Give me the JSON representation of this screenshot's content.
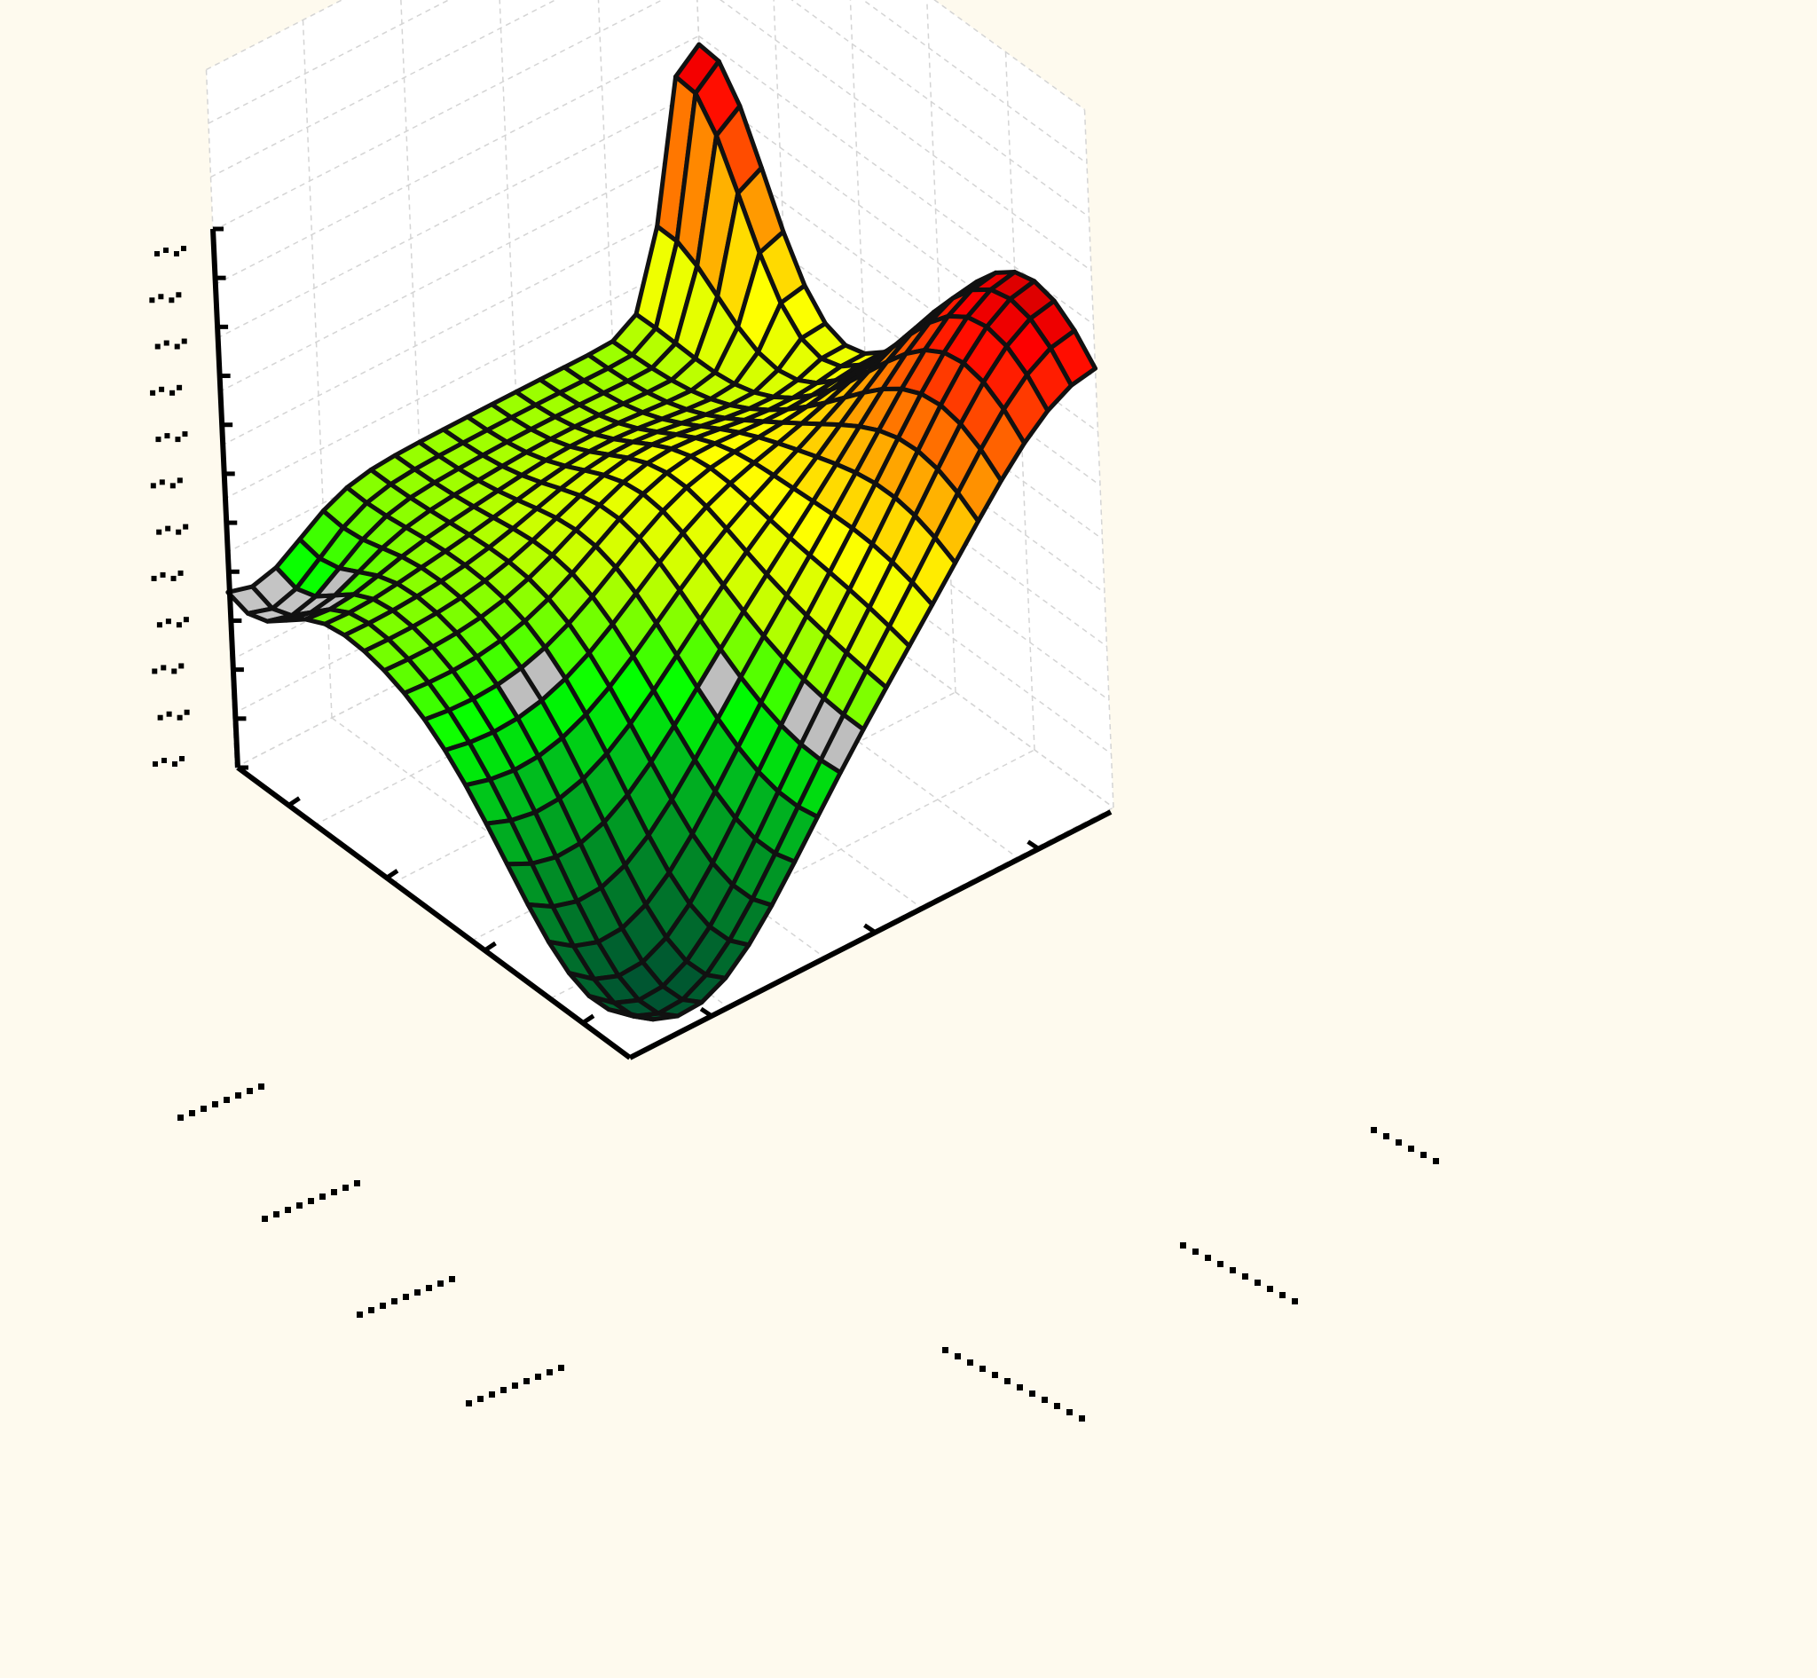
{
  "chart_data": {
    "type": "surface",
    "title": "",
    "xlabel": "",
    "ylabel": "",
    "zlabel": "",
    "grid": true,
    "legend": "none",
    "colormap": [
      "#bfbfbf",
      "#d8ff00",
      "#ffff00",
      "#ffa500",
      "#ff4500",
      "#ff0000",
      "#8b0000",
      "#00ff00",
      "#00aa22",
      "#006633"
    ],
    "background": "#fefaee",
    "pane_color": "#ffffff",
    "grid_size": 20,
    "z_range": [
      0,
      1
    ],
    "z_ticks": 12,
    "x_ticks": 4,
    "y_ticks": 3,
    "surface_values_description_sample": {
      "corner_near_left": 0.42,
      "corner_far_left_peak": 0.92,
      "corner_far_right": 0.88,
      "corner_near_right": 0.02,
      "valley_min": 0.0
    }
  }
}
